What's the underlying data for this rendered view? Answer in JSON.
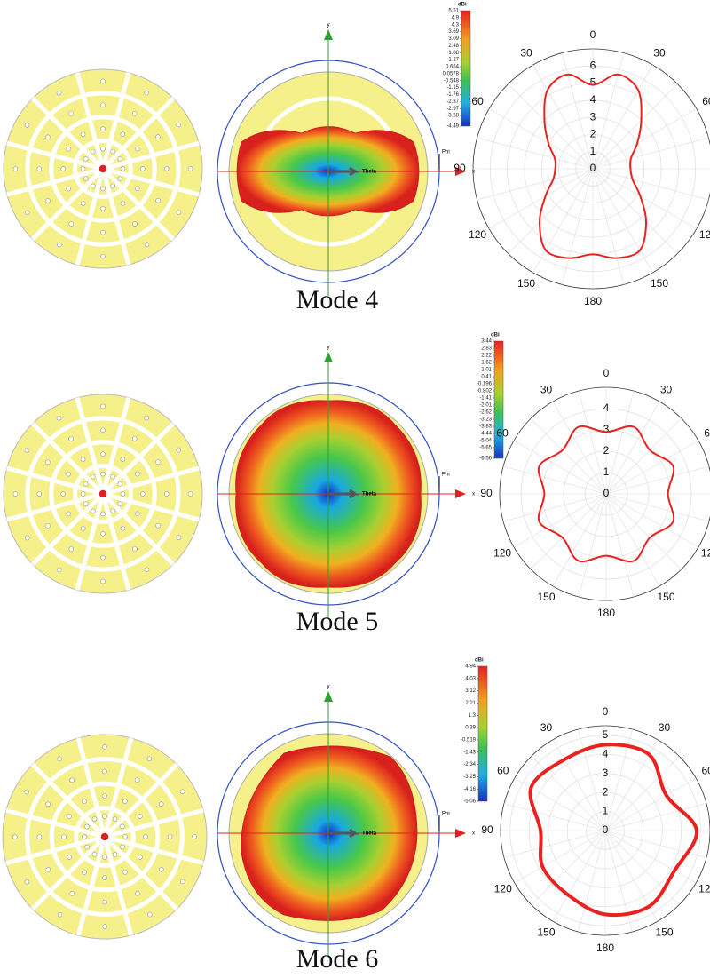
{
  "chart_data": [
    {
      "type": "polar",
      "color": "#e8231f",
      "theta": [
        0,
        15,
        30,
        45,
        60,
        75,
        90,
        105,
        120,
        135,
        150,
        165,
        180,
        195,
        210,
        225,
        240,
        255,
        270,
        285,
        300,
        315,
        330,
        345
      ],
      "values": [
        4.9,
        5.7,
        5.3,
        4.0,
        3.0,
        2.3,
        2.2,
        2.4,
        3.2,
        4.4,
        5.5,
        5.4,
        5.0,
        5.4,
        5.5,
        4.4,
        3.2,
        2.4,
        2.2,
        2.3,
        3.0,
        4.0,
        5.3,
        5.7
      ],
      "rlim": [
        0,
        7
      ],
      "rticks": [
        0,
        1,
        2,
        3,
        4,
        5,
        6
      ],
      "theta_ticks": [
        0,
        30,
        60,
        90,
        120,
        150,
        180,
        {
          "value": 210,
          "label": "150"
        },
        {
          "value": 240,
          "label": "120"
        },
        {
          "value": 270,
          "label": "90"
        },
        {
          "value": 300,
          "label": "60"
        },
        {
          "value": 330,
          "label": "30"
        }
      ]
    },
    {
      "type": "polar",
      "color": "#e8231f",
      "theta": [
        0,
        22.5,
        45,
        67.5,
        90,
        112.5,
        135,
        157.5,
        180,
        202.5,
        225,
        247.5,
        270,
        292.5,
        315,
        337.5
      ],
      "values": [
        2.9,
        3.4,
        2.9,
        3.4,
        2.9,
        3.4,
        2.9,
        3.4,
        2.9,
        3.4,
        2.9,
        3.4,
        2.9,
        3.4,
        2.9,
        3.4
      ],
      "rlim": [
        0,
        5
      ],
      "rticks": [
        0,
        1,
        2,
        3,
        4
      ],
      "theta_ticks": [
        0,
        30,
        60,
        90,
        120,
        150,
        180,
        {
          "value": 210,
          "label": "150"
        },
        {
          "value": 240,
          "label": "120"
        },
        {
          "value": 270,
          "label": "90"
        },
        {
          "value": 300,
          "label": "60"
        },
        {
          "value": 330,
          "label": "30"
        }
      ]
    },
    {
      "type": "polar",
      "color": "#e8231f",
      "theta": [
        0,
        30,
        60,
        90,
        120,
        150,
        180,
        210,
        240,
        270,
        300,
        330
      ],
      "values": [
        4.5,
        4.6,
        3.7,
        4.8,
        4.2,
        4.6,
        4.4,
        3.9,
        3.8,
        3.4,
        4.5,
        4.3
      ],
      "rlim": [
        0,
        5.5
      ],
      "rticks": [
        0,
        1,
        2,
        3,
        4,
        5
      ],
      "theta_ticks": [
        0,
        30,
        60,
        90,
        120,
        150,
        180,
        {
          "value": 210,
          "label": "150"
        },
        {
          "value": 240,
          "label": "120"
        },
        {
          "value": 270,
          "label": "90"
        },
        {
          "value": 300,
          "label": "60"
        },
        {
          "value": 330,
          "label": "30"
        }
      ]
    }
  ],
  "panels": [
    {
      "caption": "Mode 4",
      "axes": {
        "x": "x",
        "y": "y",
        "theta": "Theta",
        "phi": "Phi"
      },
      "colorbar": {
        "label": "dBi",
        "ticks": [
          5.51,
          4.9,
          4.3,
          3.69,
          3.09,
          2.48,
          1.88,
          1.27,
          0.664,
          0.0578,
          -0.548,
          -1.15,
          -1.76,
          -2.37,
          -2.97,
          -3.58,
          -4.49
        ]
      }
    },
    {
      "caption": "Mode 5",
      "axes": {
        "x": "x",
        "y": "y",
        "theta": "Theta",
        "phi": "Phi"
      },
      "colorbar": {
        "label": "dBi",
        "ticks": [
          3.44,
          2.83,
          2.22,
          1.62,
          1.01,
          0.41,
          -0.196,
          -0.802,
          -1.41,
          -2.01,
          -2.62,
          -3.23,
          -3.83,
          -4.44,
          -5.04,
          -5.65,
          -6.56
        ]
      }
    },
    {
      "caption": "Mode 6",
      "axes": {
        "x": "x",
        "y": "y",
        "theta": "Theta",
        "phi": "Phi"
      },
      "colorbar": {
        "label": "dBi",
        "ticks": [
          4.94,
          4.03,
          3.12,
          2.21,
          1.3,
          0.39,
          -0.519,
          -1.43,
          -2.34,
          -3.25,
          -4.16,
          -5.06
        ]
      }
    }
  ]
}
